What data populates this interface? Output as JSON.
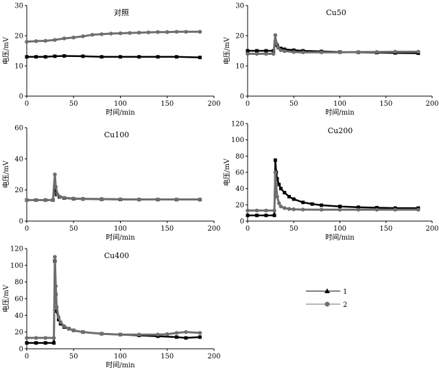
{
  "colors": {
    "series1": "#000000",
    "series2": "#6e6e6e",
    "axis": "#000000"
  },
  "legend": {
    "placement": "bottom-right",
    "entries": [
      {
        "label": "1",
        "marker": "triangle",
        "color": "#000000"
      },
      {
        "label": "2",
        "marker": "circle",
        "color": "#6e6e6e"
      }
    ]
  },
  "chart_data": [
    {
      "type": "scatter",
      "title": "对照",
      "xlabel": "时间/min",
      "ylabel": "电压/mV",
      "xlim": [
        0,
        200
      ],
      "ylim": [
        0,
        30
      ],
      "xticks": [
        "0",
        "50",
        "100",
        "150",
        "200"
      ],
      "yticks": [
        "0",
        "10",
        "20",
        "30"
      ],
      "series": [
        {
          "name": "1",
          "x": [
            0,
            10,
            20,
            30,
            40,
            60,
            80,
            100,
            120,
            140,
            160,
            185
          ],
          "y": [
            13,
            13,
            13,
            13.2,
            13.3,
            13.2,
            13,
            13,
            13,
            13,
            13,
            12.8
          ]
        },
        {
          "name": "2",
          "x": [
            0,
            10,
            20,
            30,
            40,
            50,
            60,
            70,
            80,
            90,
            100,
            110,
            120,
            130,
            140,
            150,
            160,
            170,
            185
          ],
          "y": [
            18,
            18.2,
            18.3,
            18.6,
            19.1,
            19.4,
            19.8,
            20.3,
            20.5,
            20.7,
            20.8,
            20.9,
            21,
            21.1,
            21.2,
            21.2,
            21.3,
            21.3,
            21.3
          ]
        }
      ]
    },
    {
      "type": "scatter",
      "title": "Cu50",
      "xlabel": "时间/min",
      "ylabel": "电压/mV",
      "xlim": [
        0,
        200
      ],
      "ylim": [
        0,
        30
      ],
      "xticks": [
        "0",
        "50",
        "100",
        "150",
        "200"
      ],
      "yticks": [
        "0",
        "10",
        "20",
        "30"
      ],
      "series": [
        {
          "name": "1",
          "x": [
            0,
            10,
            20,
            28,
            30,
            32,
            36,
            40,
            50,
            60,
            80,
            100,
            120,
            140,
            160,
            185
          ],
          "y": [
            15,
            15,
            15,
            15,
            18,
            16.8,
            15.8,
            15.5,
            15.2,
            15,
            14.8,
            14.6,
            14.5,
            14.4,
            14.3,
            14.2
          ]
        },
        {
          "name": "2",
          "x": [
            0,
            10,
            20,
            28,
            30,
            31,
            33,
            36,
            40,
            50,
            60,
            80,
            100,
            120,
            140,
            160,
            185
          ],
          "y": [
            14,
            14,
            14,
            14,
            20.2,
            17.5,
            16,
            15.2,
            14.9,
            14.6,
            14.5,
            14.5,
            14.5,
            14.6,
            14.6,
            14.7,
            14.7
          ]
        }
      ]
    },
    {
      "type": "scatter",
      "title": "Cu100",
      "xlabel": "时间/min",
      "ylabel": "电压/mV",
      "xlim": [
        0,
        200
      ],
      "ylim": [
        0,
        60
      ],
      "xticks": [
        "0",
        "50",
        "100",
        "150",
        "200"
      ],
      "yticks": [
        "0",
        "20",
        "40",
        "60"
      ],
      "series": [
        {
          "name": "1",
          "x": [
            0,
            10,
            20,
            28,
            30,
            32,
            35,
            40,
            50,
            60,
            80,
            100,
            120,
            140,
            160,
            185
          ],
          "y": [
            13.5,
            13.5,
            13.5,
            13.5,
            22,
            17,
            15.5,
            14.8,
            14.3,
            14.2,
            14,
            13.9,
            13.8,
            13.8,
            13.8,
            13.8
          ]
        },
        {
          "name": "2",
          "x": [
            0,
            10,
            20,
            28,
            30,
            31,
            33,
            36,
            40,
            50,
            60,
            80,
            100,
            120,
            140,
            160,
            185
          ],
          "y": [
            13.5,
            13.5,
            13.5,
            13.5,
            30,
            22,
            17,
            15.5,
            15,
            14.5,
            14.3,
            14.2,
            14,
            13.9,
            13.9,
            13.9,
            13.9
          ]
        }
      ]
    },
    {
      "type": "scatter",
      "title": "Cu200",
      "xlabel": "时间/min",
      "ylabel": "电压/mV",
      "xlim": [
        0,
        200
      ],
      "ylim": [
        0,
        120
      ],
      "xticks": [
        "0",
        "50",
        "100",
        "150",
        "200"
      ],
      "yticks": [
        "0",
        "20",
        "40",
        "60",
        "80",
        "100",
        "120"
      ],
      "series": [
        {
          "name": "1",
          "x": [
            0,
            10,
            20,
            29,
            30,
            31,
            32,
            34,
            36,
            40,
            45,
            50,
            60,
            70,
            80,
            100,
            120,
            140,
            160,
            185
          ],
          "y": [
            7,
            7,
            7,
            7,
            75,
            60,
            52,
            45,
            40,
            35,
            30,
            27,
            23,
            21,
            19.5,
            18,
            17,
            16.5,
            16,
            16
          ]
        },
        {
          "name": "2",
          "x": [
            0,
            10,
            20,
            29,
            30,
            31,
            32,
            34,
            36,
            40,
            45,
            50,
            60,
            80,
            100,
            120,
            140,
            160,
            185
          ],
          "y": [
            13,
            13,
            13,
            13,
            60,
            44,
            30,
            22,
            18,
            16,
            15,
            14.5,
            14.2,
            14,
            14,
            14,
            14,
            14,
            14
          ]
        }
      ]
    },
    {
      "type": "scatter",
      "title": "Cu400",
      "xlabel": "时间/min",
      "ylabel": "电压/mV",
      "xlim": [
        0,
        200
      ],
      "ylim": [
        0,
        120
      ],
      "xticks": [
        "0",
        "50",
        "100",
        "150",
        "200"
      ],
      "yticks": [
        "0",
        "20",
        "40",
        "60",
        "80",
        "100",
        "120"
      ],
      "series": [
        {
          "name": "1",
          "x": [
            0,
            10,
            20,
            29,
            30,
            31,
            32,
            34,
            36,
            40,
            45,
            50,
            60,
            80,
            100,
            120,
            140,
            160,
            170,
            185
          ],
          "y": [
            7,
            7,
            7,
            7,
            105,
            65,
            45,
            35,
            30,
            26,
            24,
            22,
            20,
            18,
            17,
            16,
            15,
            14,
            13,
            14
          ]
        },
        {
          "name": "2",
          "x": [
            0,
            10,
            20,
            29,
            30,
            31,
            32,
            34,
            36,
            40,
            45,
            50,
            60,
            80,
            100,
            120,
            140,
            150,
            160,
            170,
            185
          ],
          "y": [
            13,
            13,
            13,
            13,
            110,
            75,
            50,
            38,
            32,
            27,
            24,
            22,
            20,
            18,
            17,
            17,
            17,
            17.5,
            19,
            20,
            19
          ]
        }
      ]
    }
  ]
}
